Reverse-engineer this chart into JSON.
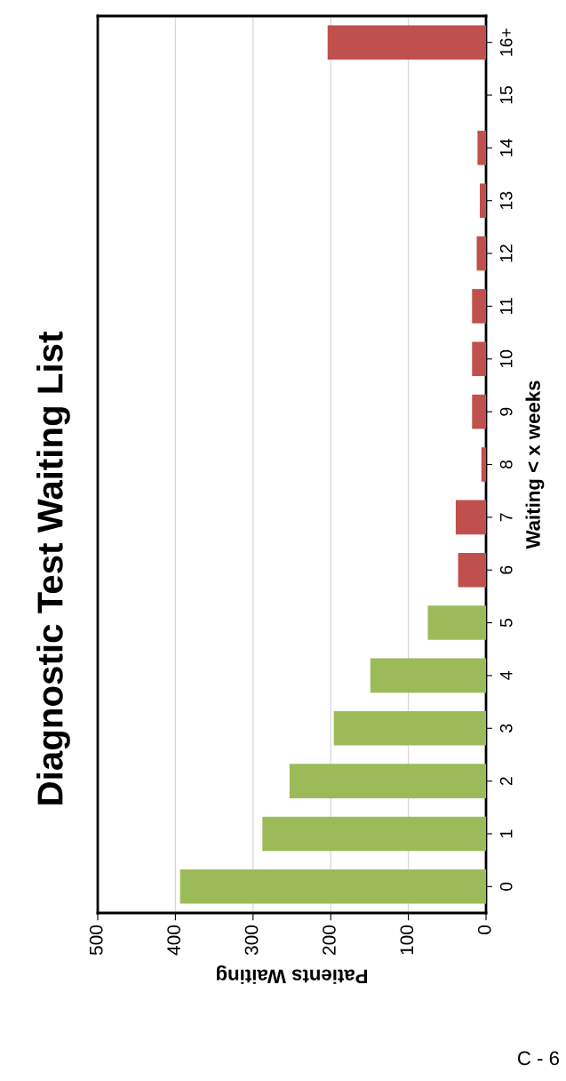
{
  "chart_data": {
    "type": "bar",
    "orientation": "horizontal",
    "title": "Diagnostic Test Waiting List",
    "xlabel": "Patients Waiting",
    "ylabel": "Waiting < x weeks",
    "categories": [
      "16+",
      "15",
      "14",
      "13",
      "12",
      "11",
      "10",
      "9",
      "8",
      "7",
      "6",
      "5",
      "4",
      "3",
      "2",
      "1",
      "0"
    ],
    "values": [
      204,
      0,
      11,
      8,
      12,
      18,
      18,
      18,
      6,
      39,
      36,
      75,
      149,
      196,
      253,
      288,
      394
    ],
    "colors": [
      "#c0504d",
      "#c0504d",
      "#c0504d",
      "#c0504d",
      "#c0504d",
      "#c0504d",
      "#c0504d",
      "#c0504d",
      "#c0504d",
      "#c0504d",
      "#c0504d",
      "#9bbb59",
      "#9bbb59",
      "#9bbb59",
      "#9bbb59",
      "#9bbb59",
      "#9bbb59"
    ],
    "xlim": [
      500,
      0
    ],
    "xticks": [
      500,
      400,
      300,
      200,
      100,
      0
    ],
    "grid": "x",
    "legend": false,
    "annotations": [
      "C - 6"
    ]
  }
}
